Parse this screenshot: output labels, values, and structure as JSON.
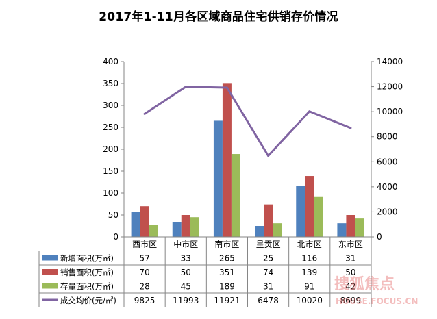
{
  "chart_data": {
    "type": "bar+line",
    "title": "2017年1-11月各区域商品住宅供销存价情况",
    "categories": [
      "西市区",
      "中市区",
      "南市区",
      "呈贡区",
      "北市区",
      "东市区"
    ],
    "left_axis": {
      "ylim": [
        0,
        400
      ],
      "ticks": [
        0,
        50,
        100,
        150,
        200,
        250,
        300,
        350,
        400
      ]
    },
    "right_axis": {
      "ylim": [
        0,
        14000
      ],
      "ticks": [
        0,
        2000,
        4000,
        6000,
        8000,
        10000,
        12000,
        14000
      ]
    },
    "series": [
      {
        "name": "新增面积(万㎡)",
        "type": "bar",
        "axis": "left",
        "color": "#4f81bd",
        "values": [
          57,
          33,
          265,
          25,
          116,
          31
        ]
      },
      {
        "name": "销售面积(万㎡)",
        "type": "bar",
        "axis": "left",
        "color": "#c0504d",
        "values": [
          70,
          50,
          351,
          74,
          139,
          50
        ]
      },
      {
        "name": "存量面积(万㎡)",
        "type": "bar",
        "axis": "left",
        "color": "#9bbb59",
        "values": [
          28,
          45,
          189,
          31,
          91,
          42
        ]
      },
      {
        "name": "成交均价(元/㎡)",
        "type": "line",
        "axis": "right",
        "color": "#8064a2",
        "values": [
          9825,
          11993,
          11921,
          6478,
          10020,
          8699
        ]
      }
    ],
    "legend": "data table below chart",
    "grid": false
  },
  "watermark": {
    "text_cn": "搜狐焦点",
    "text_en": "HOUSE.FOCUS.CN"
  }
}
